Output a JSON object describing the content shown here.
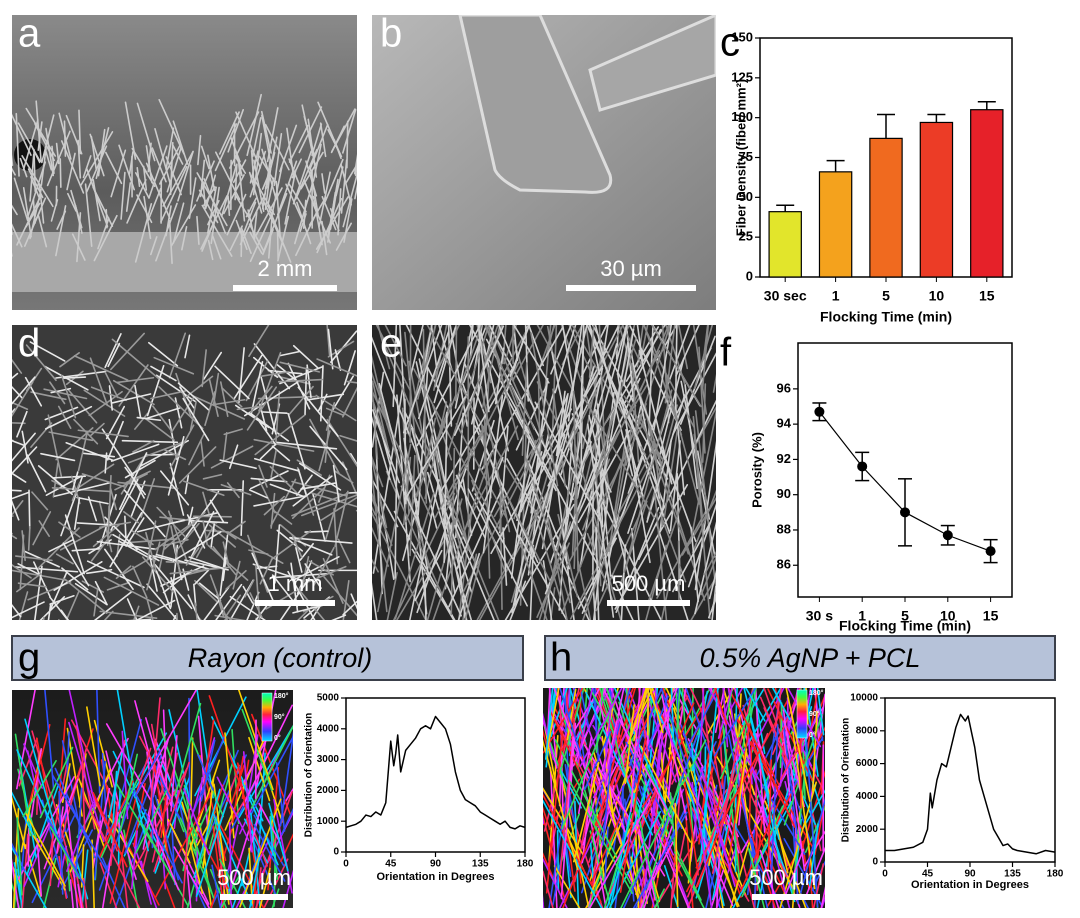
{
  "panels": [
    {
      "letter": "a",
      "scale_bar": "2 mm"
    },
    {
      "letter": "b",
      "scale_bar": "30 µm"
    },
    {
      "letter": "d",
      "scale_bar": "1 mm"
    },
    {
      "letter": "e",
      "scale_bar": "500 µm"
    },
    {
      "letter": "g",
      "header": "Rayon (control)",
      "scale_bar": "500 µm"
    },
    {
      "letter": "h",
      "header": "0.5% AgNP + PCL",
      "scale_bar": "500 µm"
    }
  ],
  "colorbar_labels": [
    "180°",
    "90°",
    "0°"
  ],
  "chart_data": [
    {
      "type": "bar",
      "panel": "c",
      "categories": [
        "30 sec",
        "1",
        "5",
        "10",
        "15"
      ],
      "values": [
        41,
        66,
        87,
        97,
        105
      ],
      "errors": [
        4,
        7,
        15,
        5,
        5
      ],
      "colors": [
        "#e2e52b",
        "#f4a21d",
        "#f06a1f",
        "#ec3c26",
        "#e62129"
      ],
      "ylim": [
        0,
        150
      ],
      "yticks": [
        0,
        25,
        50,
        75,
        100,
        125,
        150
      ],
      "ylabel": "Fiber Density (fiber/ mm²)",
      "xlabel": "Flocking Time (min)"
    },
    {
      "type": "line",
      "panel": "f",
      "categories": [
        "30 s",
        "1",
        "5",
        "10",
        "15"
      ],
      "values": [
        94.7,
        91.6,
        89.0,
        87.7,
        86.8
      ],
      "errors": [
        0.5,
        0.8,
        1.9,
        0.55,
        0.65
      ],
      "color": "#000000",
      "ylim": [
        84.2,
        98.6
      ],
      "yticks": [
        86,
        88,
        90,
        92,
        94,
        96
      ],
      "ylabel": "Porosity (%)",
      "xlabel": "Flocking Time (min)"
    },
    {
      "type": "profile",
      "panel": "g",
      "x": [
        0,
        5,
        10,
        15,
        20,
        25,
        30,
        35,
        40,
        45,
        48,
        50,
        52,
        55,
        60,
        65,
        70,
        75,
        80,
        85,
        90,
        95,
        100,
        105,
        110,
        115,
        120,
        125,
        130,
        135,
        140,
        145,
        150,
        155,
        160,
        165,
        170,
        175,
        180
      ],
      "values": [
        800,
        850,
        900,
        1000,
        1200,
        1150,
        1300,
        1200,
        1600,
        3600,
        2800,
        3200,
        3800,
        2600,
        3300,
        3500,
        3700,
        4000,
        4100,
        4000,
        4400,
        4200,
        4000,
        3500,
        2600,
        2000,
        1700,
        1600,
        1500,
        1300,
        1200,
        1100,
        1000,
        900,
        1000,
        800,
        750,
        850,
        800
      ],
      "color": "#000000",
      "xlim": [
        0,
        180
      ],
      "xticks": [
        0,
        45,
        90,
        135,
        180
      ],
      "ylim": [
        0,
        5000
      ],
      "yticks": [
        0,
        1000,
        2000,
        3000,
        4000,
        5000
      ],
      "ylabel": "Distribution of Orientation",
      "xlabel": "Orientation in Degrees"
    },
    {
      "type": "profile",
      "panel": "h",
      "x": [
        0,
        10,
        20,
        30,
        40,
        45,
        48,
        50,
        55,
        60,
        65,
        70,
        75,
        80,
        85,
        88,
        92,
        95,
        100,
        105,
        110,
        115,
        120,
        125,
        130,
        135,
        140,
        150,
        160,
        170,
        180
      ],
      "values": [
        700,
        700,
        800,
        900,
        1200,
        2000,
        4200,
        3300,
        5000,
        6000,
        5800,
        7000,
        8200,
        9000,
        8600,
        8900,
        7800,
        7000,
        5000,
        4000,
        3000,
        2000,
        1500,
        1000,
        1100,
        800,
        700,
        600,
        500,
        700,
        600
      ],
      "color": "#000000",
      "xlim": [
        0,
        180
      ],
      "xticks": [
        0,
        45,
        90,
        135,
        180
      ],
      "ylim": [
        0,
        10000
      ],
      "yticks": [
        0,
        2000,
        4000,
        6000,
        8000,
        10000
      ],
      "ylabel": "Distribution of Orientation",
      "xlabel": "Orientation in Degrees"
    }
  ]
}
